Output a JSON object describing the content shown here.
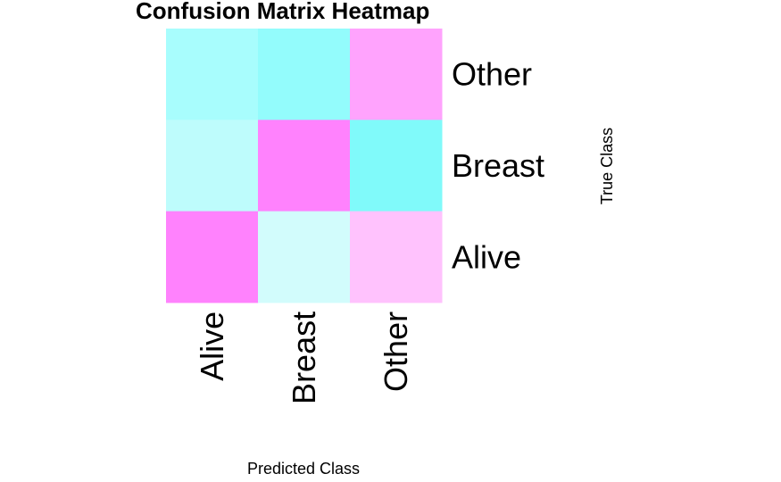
{
  "chart_data": {
    "type": "heatmap",
    "title": "Confusion Matrix Heatmap",
    "xlabel": "Predicted Class",
    "ylabel": "True Class",
    "x_categories": [
      "Alive",
      "Breast",
      "Other"
    ],
    "y_categories": [
      "Alive",
      "Breast",
      "Other"
    ],
    "cells": [
      {
        "true": "Other",
        "predicted": "Alive",
        "color": "#a8fdfd"
      },
      {
        "true": "Other",
        "predicted": "Breast",
        "color": "#93fcfc"
      },
      {
        "true": "Other",
        "predicted": "Other",
        "color": "#ffa3fd"
      },
      {
        "true": "Breast",
        "predicted": "Alive",
        "color": "#befcfc"
      },
      {
        "true": "Breast",
        "predicted": "Breast",
        "color": "#ff82fd"
      },
      {
        "true": "Breast",
        "predicted": "Other",
        "color": "#80fafa"
      },
      {
        "true": "Alive",
        "predicted": "Alive",
        "color": "#ff82fd"
      },
      {
        "true": "Alive",
        "predicted": "Breast",
        "color": "#d2fcfc"
      },
      {
        "true": "Alive",
        "predicted": "Other",
        "color": "#ffc2fd"
      }
    ],
    "grid": false,
    "legend": "none"
  }
}
